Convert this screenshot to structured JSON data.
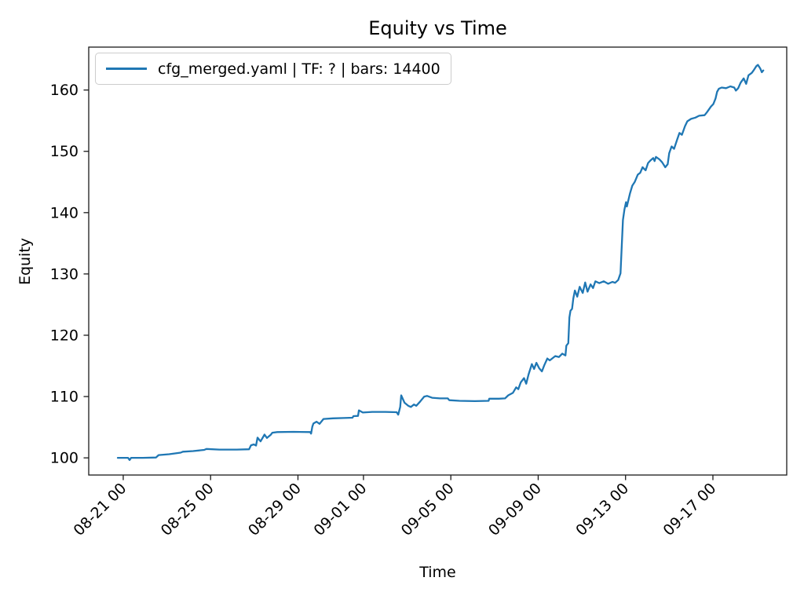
{
  "chart_data": {
    "type": "line",
    "title": "Equity vs Time",
    "xlabel": "Time",
    "ylabel": "Equity",
    "legend": [
      "cfg_merged.yaml | TF: ? | bars: 14400"
    ],
    "legend_position": "upper left",
    "line_color": "#1f77b4",
    "axis_color": "#1a1a1a",
    "grid": false,
    "x_unit": "days since 08-21 00:00",
    "x_tick_labels": [
      "08-21 00",
      "08-25 00",
      "08-29 00",
      "09-01 00",
      "09-05 00",
      "09-09 00",
      "09-13 00",
      "09-17 00"
    ],
    "x_tick_days": [
      0,
      4,
      8,
      11,
      15,
      19,
      23,
      27
    ],
    "x_tick_rotation_deg": 45,
    "y_ticks": [
      100,
      110,
      120,
      130,
      140,
      150,
      160
    ],
    "x_range_days": [
      -1.58,
      30.38
    ],
    "ylim": [
      97.2,
      167.0
    ],
    "series": [
      {
        "name": "cfg_merged.yaml | TF: ? | bars: 14400",
        "points": [
          [
            -0.25,
            100.0
          ],
          [
            0.0,
            100.0
          ],
          [
            0.22,
            100.0
          ],
          [
            0.29,
            99.65
          ],
          [
            0.36,
            100.0
          ],
          [
            0.9,
            100.0
          ],
          [
            1.5,
            100.05
          ],
          [
            1.62,
            100.45
          ],
          [
            2.1,
            100.6
          ],
          [
            2.63,
            100.85
          ],
          [
            2.73,
            101.0
          ],
          [
            3.2,
            101.1
          ],
          [
            3.71,
            101.3
          ],
          [
            3.81,
            101.45
          ],
          [
            4.4,
            101.35
          ],
          [
            5.2,
            101.35
          ],
          [
            5.76,
            101.4
          ],
          [
            5.85,
            102.05
          ],
          [
            5.98,
            102.2
          ],
          [
            6.08,
            102.0
          ],
          [
            6.15,
            103.3
          ],
          [
            6.29,
            102.7
          ],
          [
            6.47,
            103.8
          ],
          [
            6.58,
            103.25
          ],
          [
            6.75,
            103.75
          ],
          [
            6.83,
            104.1
          ],
          [
            7.05,
            104.2
          ],
          [
            7.8,
            104.25
          ],
          [
            8.56,
            104.2
          ],
          [
            8.6,
            103.95
          ],
          [
            8.66,
            105.1
          ],
          [
            8.71,
            105.6
          ],
          [
            8.85,
            105.9
          ],
          [
            8.99,
            105.55
          ],
          [
            9.17,
            106.35
          ],
          [
            9.6,
            106.45
          ],
          [
            10.1,
            106.5
          ],
          [
            10.5,
            106.55
          ],
          [
            10.54,
            106.8
          ],
          [
            10.75,
            106.85
          ],
          [
            10.79,
            107.75
          ],
          [
            10.97,
            107.4
          ],
          [
            11.4,
            107.5
          ],
          [
            12.0,
            107.5
          ],
          [
            12.52,
            107.45
          ],
          [
            12.59,
            107.05
          ],
          [
            12.68,
            108.3
          ],
          [
            12.73,
            110.2
          ],
          [
            12.88,
            109.0
          ],
          [
            13.05,
            108.5
          ],
          [
            13.17,
            108.3
          ],
          [
            13.31,
            108.7
          ],
          [
            13.42,
            108.5
          ],
          [
            13.6,
            109.2
          ],
          [
            13.78,
            110.0
          ],
          [
            13.92,
            110.1
          ],
          [
            14.14,
            109.8
          ],
          [
            14.5,
            109.7
          ],
          [
            14.86,
            109.7
          ],
          [
            14.93,
            109.4
          ],
          [
            15.4,
            109.3
          ],
          [
            16.1,
            109.25
          ],
          [
            16.73,
            109.3
          ],
          [
            16.76,
            109.65
          ],
          [
            17.2,
            109.65
          ],
          [
            17.48,
            109.7
          ],
          [
            17.63,
            110.2
          ],
          [
            17.84,
            110.6
          ],
          [
            17.99,
            111.5
          ],
          [
            18.09,
            111.2
          ],
          [
            18.2,
            112.3
          ],
          [
            18.35,
            113.0
          ],
          [
            18.45,
            112.1
          ],
          [
            18.56,
            113.6
          ],
          [
            18.71,
            115.3
          ],
          [
            18.81,
            114.5
          ],
          [
            18.92,
            115.5
          ],
          [
            19.05,
            114.6
          ],
          [
            19.17,
            114.1
          ],
          [
            19.28,
            115.1
          ],
          [
            19.42,
            116.2
          ],
          [
            19.53,
            115.9
          ],
          [
            19.78,
            116.6
          ],
          [
            19.95,
            116.45
          ],
          [
            20.1,
            117.0
          ],
          [
            20.25,
            116.7
          ],
          [
            20.29,
            118.3
          ],
          [
            20.38,
            118.7
          ],
          [
            20.43,
            122.9
          ],
          [
            20.48,
            124.0
          ],
          [
            20.55,
            124.3
          ],
          [
            20.61,
            126.0
          ],
          [
            20.68,
            127.3
          ],
          [
            20.79,
            126.3
          ],
          [
            20.9,
            127.9
          ],
          [
            21.04,
            126.9
          ],
          [
            21.15,
            128.6
          ],
          [
            21.26,
            127.1
          ],
          [
            21.4,
            128.3
          ],
          [
            21.51,
            127.7
          ],
          [
            21.62,
            128.8
          ],
          [
            21.8,
            128.5
          ],
          [
            22.0,
            128.8
          ],
          [
            22.2,
            128.4
          ],
          [
            22.4,
            128.7
          ],
          [
            22.52,
            128.55
          ],
          [
            22.66,
            129.0
          ],
          [
            22.77,
            130.1
          ],
          [
            22.88,
            138.8
          ],
          [
            22.95,
            140.5
          ],
          [
            23.02,
            141.7
          ],
          [
            23.06,
            141.0
          ],
          [
            23.2,
            143.1
          ],
          [
            23.31,
            144.4
          ],
          [
            23.42,
            145.0
          ],
          [
            23.56,
            146.2
          ],
          [
            23.67,
            146.5
          ],
          [
            23.78,
            147.4
          ],
          [
            23.92,
            146.9
          ],
          [
            24.03,
            148.1
          ],
          [
            24.14,
            148.5
          ],
          [
            24.27,
            148.9
          ],
          [
            24.33,
            148.4
          ],
          [
            24.39,
            149.1
          ],
          [
            24.55,
            148.7
          ],
          [
            24.68,
            148.2
          ],
          [
            24.82,
            147.4
          ],
          [
            24.93,
            147.9
          ],
          [
            25.0,
            149.7
          ],
          [
            25.11,
            150.8
          ],
          [
            25.22,
            150.4
          ],
          [
            25.36,
            151.9
          ],
          [
            25.47,
            153.0
          ],
          [
            25.58,
            152.7
          ],
          [
            25.72,
            154.1
          ],
          [
            25.83,
            154.9
          ],
          [
            26.0,
            155.3
          ],
          [
            26.2,
            155.5
          ],
          [
            26.37,
            155.8
          ],
          [
            26.62,
            155.9
          ],
          [
            26.73,
            156.4
          ],
          [
            26.91,
            157.3
          ],
          [
            27.02,
            157.7
          ],
          [
            27.12,
            158.6
          ],
          [
            27.19,
            159.7
          ],
          [
            27.27,
            160.2
          ],
          [
            27.4,
            160.4
          ],
          [
            27.6,
            160.3
          ],
          [
            27.8,
            160.6
          ],
          [
            27.98,
            160.4
          ],
          [
            28.05,
            159.9
          ],
          [
            28.16,
            160.3
          ],
          [
            28.27,
            161.2
          ],
          [
            28.41,
            161.9
          ],
          [
            28.52,
            161.0
          ],
          [
            28.63,
            162.4
          ],
          [
            28.78,
            162.8
          ],
          [
            28.88,
            163.3
          ],
          [
            28.99,
            163.9
          ],
          [
            29.06,
            164.1
          ],
          [
            29.17,
            163.5
          ],
          [
            29.24,
            162.9
          ],
          [
            29.31,
            163.2
          ]
        ]
      }
    ]
  }
}
